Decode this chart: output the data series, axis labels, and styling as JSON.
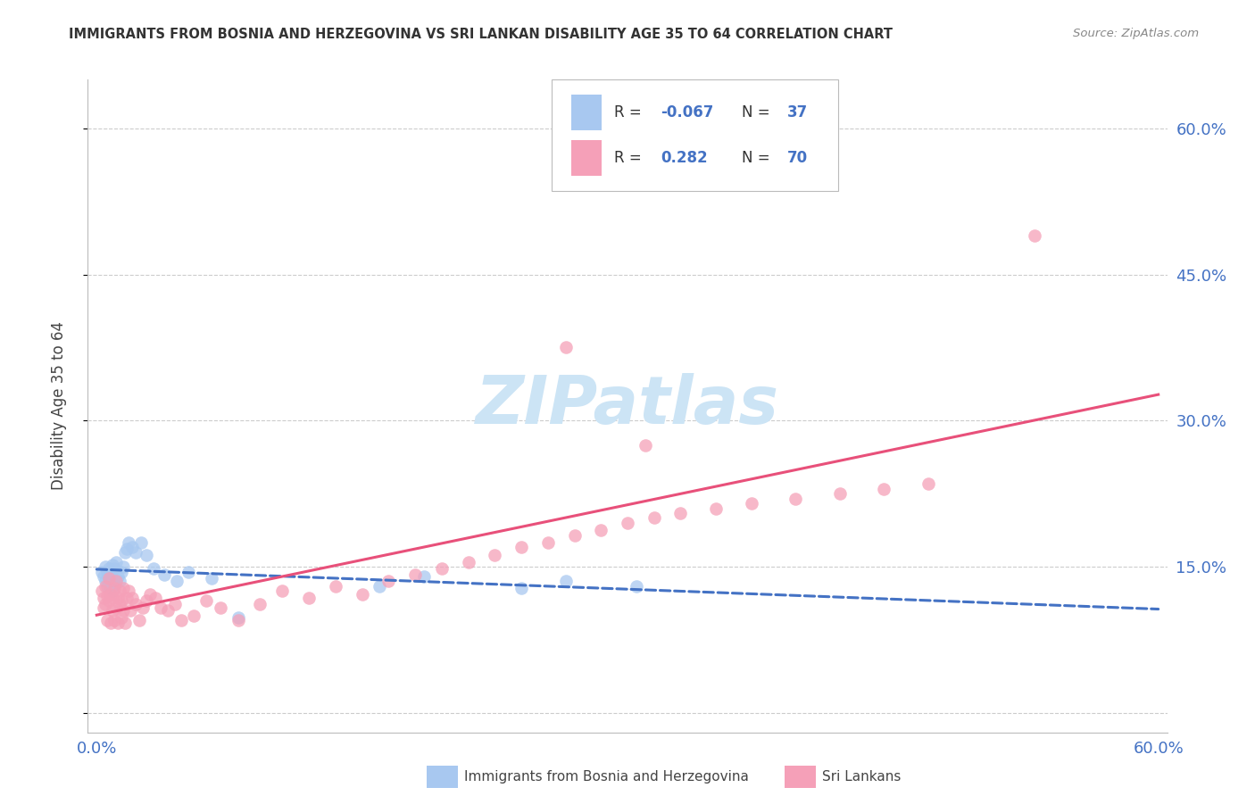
{
  "title": "IMMIGRANTS FROM BOSNIA AND HERZEGOVINA VS SRI LANKAN DISABILITY AGE 35 TO 64 CORRELATION CHART",
  "source": "Source: ZipAtlas.com",
  "ylabel": "Disability Age 35 to 64",
  "bosnia_color": "#a8c8f0",
  "srilanka_color": "#f5a0b8",
  "bosnia_line_color": "#4472c4",
  "srilanka_line_color": "#e8507a",
  "R_bosnia": -0.067,
  "N_bosnia": 37,
  "R_srilanka": 0.282,
  "N_srilanka": 70,
  "watermark_color": "#cce4f5",
  "grid_color": "#cccccc",
  "background_color": "#ffffff",
  "tick_color": "#4472c4",
  "bosnia_x": [
    0.003,
    0.004,
    0.005,
    0.005,
    0.006,
    0.006,
    0.007,
    0.007,
    0.008,
    0.008,
    0.009,
    0.009,
    0.01,
    0.01,
    0.011,
    0.012,
    0.013,
    0.014,
    0.015,
    0.016,
    0.017,
    0.018,
    0.02,
    0.022,
    0.025,
    0.028,
    0.032,
    0.038,
    0.045,
    0.052,
    0.065,
    0.08,
    0.16,
    0.185,
    0.24,
    0.265,
    0.305
  ],
  "bosnia_y": [
    0.145,
    0.14,
    0.15,
    0.135,
    0.145,
    0.13,
    0.148,
    0.138,
    0.142,
    0.128,
    0.152,
    0.125,
    0.148,
    0.132,
    0.155,
    0.14,
    0.135,
    0.145,
    0.15,
    0.165,
    0.168,
    0.175,
    0.17,
    0.165,
    0.175,
    0.162,
    0.148,
    0.142,
    0.135,
    0.145,
    0.138,
    0.098,
    0.13,
    0.14,
    0.128,
    0.135,
    0.13
  ],
  "srilanka_x": [
    0.003,
    0.004,
    0.004,
    0.005,
    0.005,
    0.006,
    0.006,
    0.007,
    0.007,
    0.008,
    0.008,
    0.009,
    0.009,
    0.01,
    0.01,
    0.011,
    0.011,
    0.012,
    0.012,
    0.013,
    0.013,
    0.014,
    0.014,
    0.015,
    0.015,
    0.016,
    0.017,
    0.018,
    0.019,
    0.02,
    0.022,
    0.024,
    0.026,
    0.028,
    0.03,
    0.033,
    0.036,
    0.04,
    0.044,
    0.048,
    0.055,
    0.062,
    0.07,
    0.08,
    0.092,
    0.105,
    0.12,
    0.135,
    0.15,
    0.165,
    0.18,
    0.195,
    0.21,
    0.225,
    0.24,
    0.255,
    0.27,
    0.285,
    0.3,
    0.315,
    0.33,
    0.35,
    0.37,
    0.395,
    0.42,
    0.445,
    0.47,
    0.31,
    0.53,
    0.265
  ],
  "srilanka_y": [
    0.125,
    0.118,
    0.108,
    0.13,
    0.112,
    0.12,
    0.095,
    0.115,
    0.138,
    0.122,
    0.092,
    0.118,
    0.105,
    0.128,
    0.095,
    0.135,
    0.108,
    0.118,
    0.092,
    0.112,
    0.125,
    0.098,
    0.115,
    0.105,
    0.128,
    0.092,
    0.118,
    0.125,
    0.105,
    0.118,
    0.112,
    0.095,
    0.108,
    0.115,
    0.122,
    0.118,
    0.108,
    0.105,
    0.112,
    0.095,
    0.1,
    0.115,
    0.108,
    0.095,
    0.112,
    0.125,
    0.118,
    0.13,
    0.122,
    0.135,
    0.142,
    0.148,
    0.155,
    0.162,
    0.17,
    0.175,
    0.182,
    0.188,
    0.195,
    0.2,
    0.205,
    0.21,
    0.215,
    0.22,
    0.225,
    0.23,
    0.235,
    0.275,
    0.49,
    0.375
  ],
  "xlim": [
    0.0,
    0.6
  ],
  "ylim": [
    -0.02,
    0.65
  ],
  "yticks": [
    0.0,
    0.15,
    0.3,
    0.45,
    0.6
  ],
  "xticks": [
    0.0,
    0.15,
    0.3,
    0.45,
    0.6
  ]
}
